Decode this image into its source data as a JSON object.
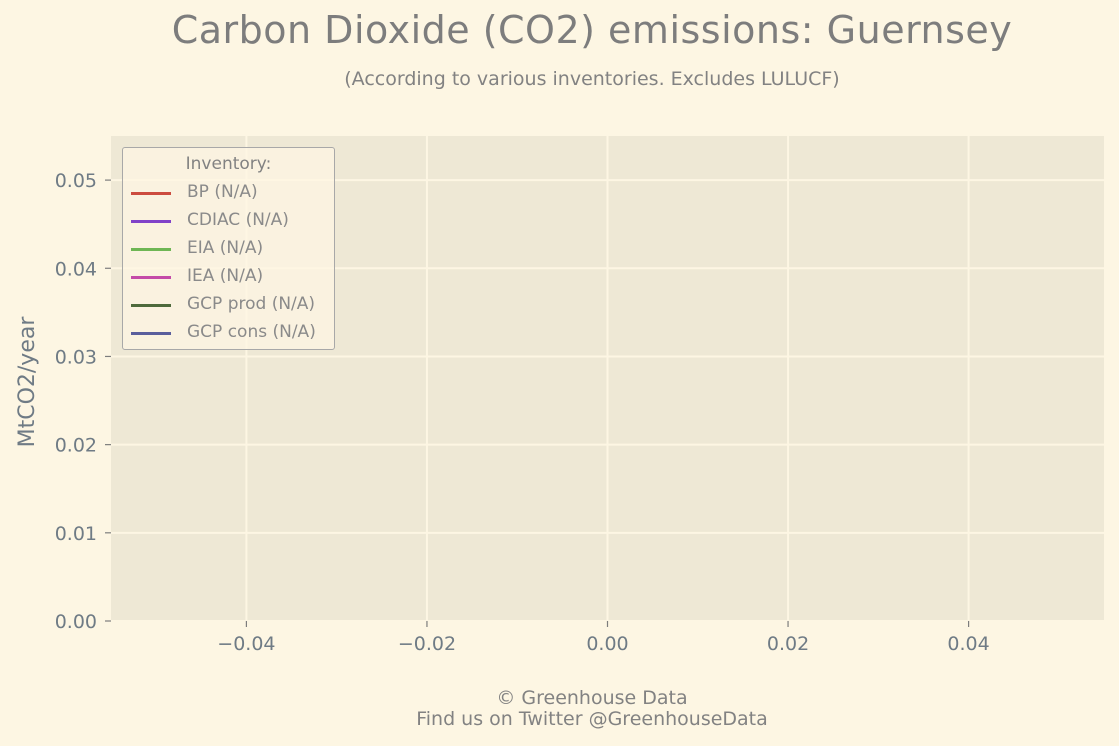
{
  "chart_data": {
    "type": "line",
    "title": "Carbon Dioxide (CO2) emissions: Guernsey",
    "subtitle": "(According to various inventories. Excludes LULUCF)",
    "xlabel": "",
    "ylabel": "MtCO2/year",
    "xlim": [
      -0.055,
      0.055
    ],
    "ylim": [
      0.0,
      0.055
    ],
    "x_ticks": [
      -0.04,
      -0.02,
      0.0,
      0.02,
      0.04
    ],
    "x_tick_labels": [
      "−0.04",
      "−0.02",
      "0.00",
      "0.02",
      "0.04"
    ],
    "y_ticks": [
      0.0,
      0.01,
      0.02,
      0.03,
      0.04,
      0.05
    ],
    "y_tick_labels": [
      "0.00",
      "0.01",
      "0.02",
      "0.03",
      "0.04",
      "0.05"
    ],
    "grid": true,
    "legend_title": "Inventory:",
    "legend_position": "top-left",
    "series": [
      {
        "name": "BP (N/A)",
        "color": "#cc4c3f",
        "values": []
      },
      {
        "name": "CDIAC (N/A)",
        "color": "#8042c8",
        "values": []
      },
      {
        "name": "EIA (N/A)",
        "color": "#6eb654",
        "values": []
      },
      {
        "name": "IEA (N/A)",
        "color": "#c44aa8",
        "values": []
      },
      {
        "name": "GCP prod (N/A)",
        "color": "#4e6a3c",
        "values": []
      },
      {
        "name": "GCP cons (N/A)",
        "color": "#5a5e9c",
        "values": []
      }
    ]
  },
  "footer": {
    "line1": "© Greenhouse Data",
    "line2": "Find us on Twitter @GreenhouseData"
  }
}
